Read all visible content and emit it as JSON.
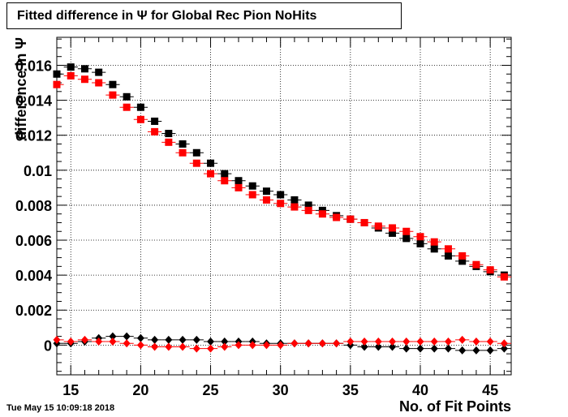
{
  "timestamp": "Tue May 15 10:09:18 2018",
  "chart_data": {
    "type": "scatter",
    "title": "Fitted difference in  Ψ  for Global Rec Pion NoHits",
    "xlabel": "No. of Fit Points",
    "ylabel": "difference in Ψ",
    "xlim": [
      14,
      46.5
    ],
    "ylim": [
      -0.0017,
      0.0176
    ],
    "x_ticks": [
      15,
      20,
      25,
      30,
      35,
      40,
      45
    ],
    "y_ticks": [
      0,
      0.002,
      0.004,
      0.006,
      0.008,
      0.01,
      0.012,
      0.014,
      0.016
    ],
    "y_tick_labels": [
      "0",
      "0.002",
      "0.004",
      "0.006",
      "0.008",
      "0.01",
      "0.012",
      "0.014",
      "0.016"
    ],
    "grid": true,
    "x": [
      14,
      15,
      16,
      17,
      18,
      19,
      20,
      21,
      22,
      23,
      24,
      25,
      26,
      27,
      28,
      29,
      30,
      31,
      32,
      33,
      34,
      35,
      36,
      37,
      38,
      39,
      40,
      41,
      42,
      43,
      44,
      45,
      46
    ],
    "series": [
      {
        "marker": "square",
        "color": "#000000",
        "values": [
          0.0155,
          0.0159,
          0.0158,
          0.0156,
          0.0149,
          0.0142,
          0.0136,
          0.0128,
          0.0121,
          0.0115,
          0.011,
          0.0104,
          0.0098,
          0.0094,
          0.0091,
          0.0088,
          0.0086,
          0.0083,
          0.008,
          0.0077,
          0.0074,
          0.0072,
          0.007,
          0.0067,
          0.0064,
          0.0061,
          0.0058,
          0.0055,
          0.0051,
          0.0048,
          0.0045,
          0.0042,
          0.004
        ]
      },
      {
        "marker": "square",
        "color": "#ff0000",
        "values": [
          0.0149,
          0.0154,
          0.0152,
          0.015,
          0.0143,
          0.0136,
          0.0129,
          0.0122,
          0.0116,
          0.011,
          0.0104,
          0.0098,
          0.0094,
          0.009,
          0.0086,
          0.0083,
          0.0081,
          0.0079,
          0.0077,
          0.0075,
          0.0073,
          0.0072,
          0.007,
          0.0068,
          0.0067,
          0.0065,
          0.0062,
          0.0059,
          0.0055,
          0.0051,
          0.0046,
          0.0043,
          0.0039
        ]
      },
      {
        "marker": "diamond",
        "color": "#000000",
        "values": [
          0.0001,
          0.0001,
          0.0002,
          0.0004,
          0.0005,
          0.0005,
          0.0004,
          0.0003,
          0.0003,
          0.0003,
          0.0003,
          0.0002,
          0.0002,
          0.0002,
          0.0002,
          0.0001,
          0.0001,
          0.0001,
          0.0001,
          0.0001,
          0.0001,
          0.0,
          -0.0001,
          -0.0001,
          -0.0001,
          -0.0002,
          -0.0002,
          -0.0002,
          -0.0002,
          -0.0003,
          -0.0003,
          -0.0003,
          -0.0002
        ]
      },
      {
        "marker": "diamond",
        "color": "#ff0000",
        "values": [
          0.0003,
          0.0002,
          0.0003,
          0.0002,
          0.0002,
          0.0001,
          0.0,
          -0.0001,
          -0.0001,
          -0.0001,
          -0.0002,
          -0.0002,
          -0.0001,
          -0.0,
          0.0,
          0.0,
          0.0,
          0.0001,
          0.0001,
          0.0001,
          0.0001,
          0.0002,
          0.0002,
          0.0002,
          0.0002,
          0.0002,
          0.0002,
          0.0002,
          0.0002,
          0.0003,
          0.0002,
          0.0002,
          0.0001
        ]
      }
    ]
  }
}
